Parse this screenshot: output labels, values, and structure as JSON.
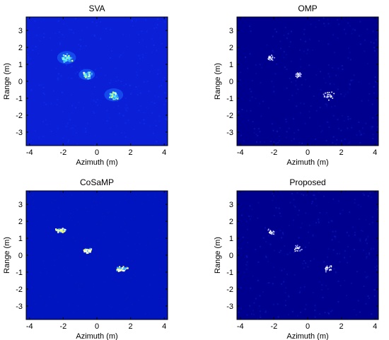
{
  "chart_data": [
    {
      "type": "heatmap",
      "title": "SVA",
      "xlabel": "Azimuth (m)",
      "ylabel": "Range (m)",
      "xlim": [
        -4.2,
        4.2
      ],
      "ylim": [
        -3.8,
        3.8
      ],
      "xticks": [
        -4,
        -2,
        0,
        2,
        4
      ],
      "yticks": [
        3,
        2,
        1,
        0,
        -1,
        -2,
        -3
      ],
      "background": "#0a1fd6",
      "targets": [
        {
          "x": -1.8,
          "y": 1.4,
          "spread": 0.35,
          "peak": "#7fffff"
        },
        {
          "x": -0.6,
          "y": 0.4,
          "spread": 0.3,
          "peak": "#ffff80"
        },
        {
          "x": 1.0,
          "y": -0.8,
          "spread": 0.35,
          "peak": "#ffffff"
        }
      ]
    },
    {
      "type": "heatmap",
      "title": "OMP",
      "xlabel": "Azimuth (m)",
      "ylabel": "Range (m)",
      "xlim": [
        -4.2,
        4.2
      ],
      "ylim": [
        -3.8,
        3.8
      ],
      "xticks": [
        -4,
        -2,
        0,
        2,
        4
      ],
      "yticks": [
        3,
        2,
        1,
        0,
        -1,
        -2,
        -3
      ],
      "background": "#00008f",
      "targets": [
        {
          "x": -2.2,
          "y": 1.4,
          "spread": 0.3,
          "peak": "#ffffff"
        },
        {
          "x": -0.6,
          "y": 0.4,
          "spread": 0.25,
          "peak": "#ffffff"
        },
        {
          "x": 1.2,
          "y": -0.8,
          "spread": 0.4,
          "peak": "#ffffff"
        }
      ]
    },
    {
      "type": "heatmap",
      "title": "CoSaMP",
      "xlabel": "Azimuth (m)",
      "ylabel": "Range (m)",
      "xlim": [
        -4.2,
        4.2
      ],
      "ylim": [
        -3.8,
        3.8
      ],
      "xticks": [
        -4,
        -2,
        0,
        2,
        4
      ],
      "yticks": [
        3,
        2,
        1,
        0,
        -1,
        -2,
        -3
      ],
      "background": "#0015c0",
      "targets": [
        {
          "x": -2.2,
          "y": 1.5,
          "spread": 0.3,
          "peak": "#ffff80"
        },
        {
          "x": -0.6,
          "y": 0.3,
          "spread": 0.3,
          "peak": "#ffff80"
        },
        {
          "x": 1.4,
          "y": -0.8,
          "spread": 0.4,
          "peak": "#ffff80"
        }
      ]
    },
    {
      "type": "heatmap",
      "title": "Proposed",
      "xlabel": "Azimuth (m)",
      "ylabel": "Range (m)",
      "xlim": [
        -4.2,
        4.2
      ],
      "ylim": [
        -3.8,
        3.8
      ],
      "xticks": [
        -4,
        -2,
        0,
        2,
        4
      ],
      "yticks": [
        3,
        2,
        1,
        0,
        -1,
        -2,
        -3
      ],
      "background": "#00008f",
      "targets": [
        {
          "x": -2.2,
          "y": 1.4,
          "spread": 0.3,
          "peak": "#ffffff"
        },
        {
          "x": -0.6,
          "y": 0.4,
          "spread": 0.3,
          "peak": "#ffffff"
        },
        {
          "x": 1.2,
          "y": -0.8,
          "spread": 0.35,
          "peak": "#ffffff"
        }
      ]
    }
  ]
}
